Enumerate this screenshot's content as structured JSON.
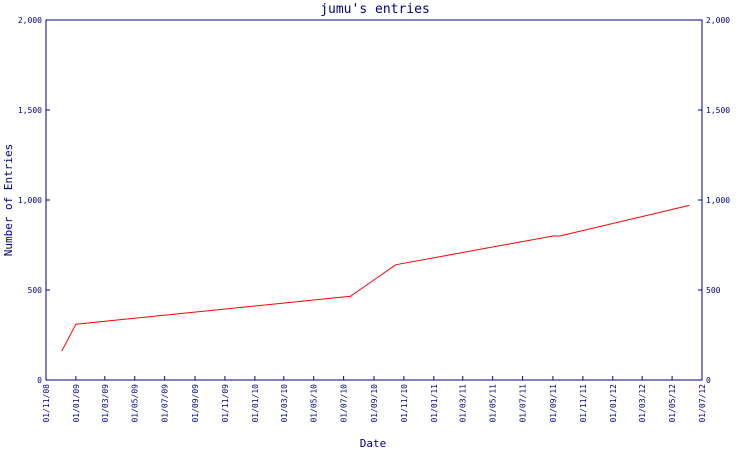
{
  "chart_data": {
    "type": "line",
    "title": "jumu's entries",
    "xlabel": "Date",
    "ylabel": "Number of Entries",
    "ylim": [
      0,
      2000
    ],
    "yticks": [
      0,
      500,
      1000,
      1500,
      2000
    ],
    "ytick_labels": [
      "0",
      "500",
      "1,000",
      "1,500",
      "2,000"
    ],
    "xlim": [
      "2008-11-01",
      "2012-07-01"
    ],
    "xticks": [
      "2008-11-01",
      "2009-01-01",
      "2009-03-01",
      "2009-05-01",
      "2009-07-01",
      "2009-09-01",
      "2009-11-01",
      "2010-01-01",
      "2010-03-01",
      "2010-05-01",
      "2010-07-01",
      "2010-09-01",
      "2010-11-01",
      "2011-01-01",
      "2011-03-01",
      "2011-05-01",
      "2011-07-01",
      "2011-09-01",
      "2011-11-01",
      "2012-01-01",
      "2012-03-01",
      "2012-05-01",
      "2012-07-01"
    ],
    "xtick_labels": [
      "01/11/08",
      "01/01/09",
      "01/03/09",
      "01/05/09",
      "01/07/09",
      "01/09/09",
      "01/11/09",
      "01/01/10",
      "01/03/10",
      "01/05/10",
      "01/07/10",
      "01/09/10",
      "01/11/10",
      "01/01/11",
      "01/03/11",
      "01/05/11",
      "01/07/11",
      "01/09/11",
      "01/11/11",
      "01/01/12",
      "01/03/12",
      "01/05/12",
      "01/07/12"
    ],
    "grid": false,
    "right_axis_mirror": true,
    "series": [
      {
        "color": "#ff0000",
        "points": [
          {
            "x": "2008-12-03",
            "y": 160
          },
          {
            "x": "2009-01-01",
            "y": 310
          },
          {
            "x": "2010-07-15",
            "y": 465
          },
          {
            "x": "2010-10-15",
            "y": 640
          },
          {
            "x": "2011-09-01",
            "y": 800
          },
          {
            "x": "2011-09-15",
            "y": 800
          },
          {
            "x": "2012-06-05",
            "y": 970
          }
        ]
      }
    ]
  },
  "colors": {
    "axis": "#000080",
    "line": "#ff0000",
    "background": "#ffffff"
  }
}
